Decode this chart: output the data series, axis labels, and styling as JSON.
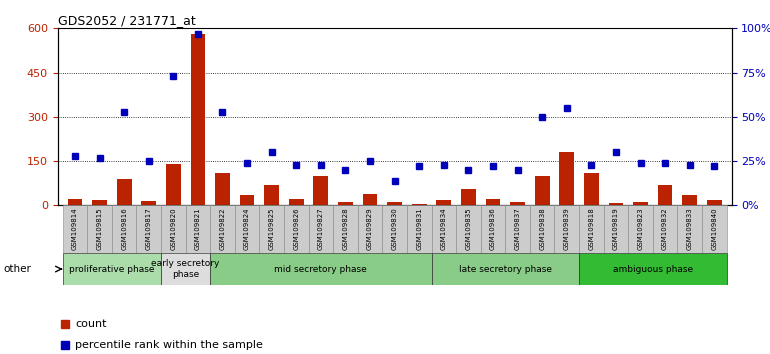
{
  "title": "GDS2052 / 231771_at",
  "samples": [
    "GSM109814",
    "GSM109815",
    "GSM109816",
    "GSM109817",
    "GSM109820",
    "GSM109821",
    "GSM109822",
    "GSM109824",
    "GSM109825",
    "GSM109826",
    "GSM109827",
    "GSM109828",
    "GSM109829",
    "GSM109830",
    "GSM109831",
    "GSM109834",
    "GSM109835",
    "GSM109836",
    "GSM109837",
    "GSM109838",
    "GSM109839",
    "GSM109818",
    "GSM109819",
    "GSM109823",
    "GSM109832",
    "GSM109833",
    "GSM109840"
  ],
  "counts": [
    20,
    18,
    90,
    15,
    140,
    580,
    110,
    35,
    70,
    20,
    100,
    12,
    40,
    10,
    5,
    18,
    55,
    20,
    10,
    100,
    180,
    110,
    8,
    12,
    70,
    35,
    18
  ],
  "percentiles": [
    28,
    27,
    53,
    25,
    73,
    97,
    53,
    24,
    30,
    23,
    23,
    20,
    25,
    14,
    22,
    23,
    20,
    22,
    20,
    50,
    55,
    23,
    30,
    24,
    24,
    23,
    22
  ],
  "phases": [
    {
      "name": "proliferative phase",
      "start": 0,
      "end": 4,
      "color": "#aaddaa"
    },
    {
      "name": "early secretory\nphase",
      "start": 4,
      "end": 6,
      "color": "#dddddd"
    },
    {
      "name": "mid secretory phase",
      "start": 6,
      "end": 15,
      "color": "#88cc88"
    },
    {
      "name": "late secretory phase",
      "start": 15,
      "end": 21,
      "color": "#88cc88"
    },
    {
      "name": "ambiguous phase",
      "start": 21,
      "end": 27,
      "color": "#33bb33"
    }
  ],
  "left_ylim": [
    0,
    600
  ],
  "left_yticks": [
    0,
    150,
    300,
    450,
    600
  ],
  "right_ylim": [
    0,
    100
  ],
  "right_yticks": [
    0,
    25,
    50,
    75,
    100
  ],
  "bar_color": "#bb2200",
  "dot_color": "#0000bb",
  "label_bg": "#cccccc",
  "bg_color": "#ffffff"
}
